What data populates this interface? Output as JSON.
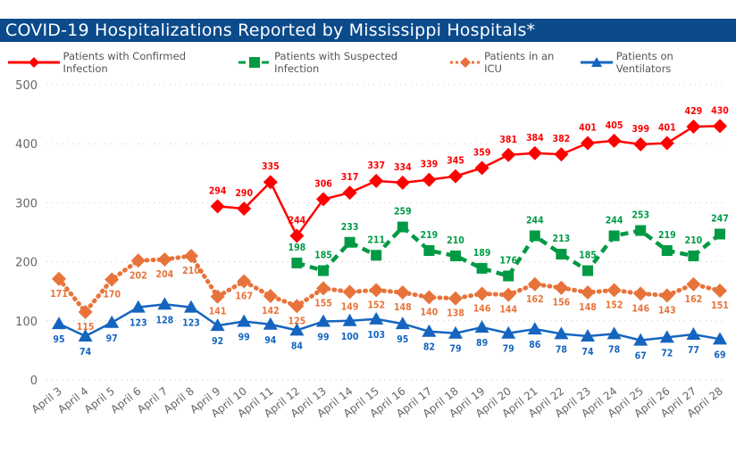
{
  "chart_data": {
    "type": "line",
    "title": "COVID-19 Hospitalizations Reported by Mississippi Hospitals*",
    "xlabel": "",
    "ylabel": "",
    "ylim": [
      0,
      500
    ],
    "yticks": [
      0,
      100,
      200,
      300,
      400,
      500
    ],
    "grid": true,
    "legend_position": "top",
    "categories": [
      "April 3",
      "April 4",
      "April 5",
      "April 6",
      "April 7",
      "April 8",
      "April 9",
      "April 10",
      "April 11",
      "April 12",
      "April 13",
      "April 14",
      "April 15",
      "April 16",
      "April 17",
      "April 18",
      "April 19",
      "April 20",
      "April 21",
      "April 22",
      "April 23",
      "April 24",
      "April 25",
      "April 26",
      "April 27",
      "April 28"
    ],
    "series": [
      {
        "name": "Patients with Confirmed Infection",
        "color": "#ff0000",
        "marker": "diamond",
        "dash": "solid",
        "values": [
          null,
          null,
          null,
          null,
          null,
          null,
          294,
          290,
          335,
          244,
          306,
          317,
          337,
          334,
          339,
          345,
          359,
          381,
          384,
          382,
          401,
          405,
          399,
          401,
          429,
          430
        ]
      },
      {
        "name": "Patients with Suspected Infection",
        "color": "#009a44",
        "marker": "square",
        "dash": "dashed",
        "values": [
          null,
          null,
          null,
          null,
          null,
          null,
          null,
          null,
          null,
          198,
          185,
          233,
          211,
          259,
          219,
          210,
          189,
          176,
          244,
          213,
          185,
          244,
          253,
          219,
          210,
          247
        ]
      },
      {
        "name": "Patients in an ICU",
        "color": "#e8733a",
        "marker": "diamond",
        "dash": "dotted",
        "values": [
          171,
          115,
          170,
          202,
          204,
          210,
          141,
          167,
          142,
          125,
          155,
          149,
          152,
          148,
          140,
          138,
          146,
          144,
          162,
          156,
          148,
          152,
          146,
          143,
          162,
          151
        ]
      },
      {
        "name": "Patients on Ventilators",
        "color": "#1565c0",
        "marker": "triangle",
        "dash": "solid",
        "values": [
          95,
          74,
          97,
          123,
          128,
          123,
          92,
          99,
          94,
          84,
          99,
          100,
          103,
          95,
          82,
          79,
          89,
          79,
          86,
          78,
          74,
          78,
          67,
          72,
          77,
          69
        ]
      }
    ]
  }
}
